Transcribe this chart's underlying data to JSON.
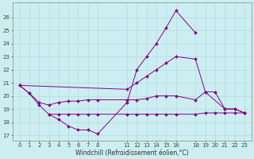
{
  "xlabel": "Windchill (Refroidissement éolien,°C)",
  "background_color": "#cceef0",
  "grid_color": "#aad8dc",
  "line_color": "#880088",
  "ylim_low": 16.6,
  "ylim_high": 27.1,
  "xlim_low": -0.7,
  "xlim_high": 23.7,
  "yticks": [
    17,
    18,
    19,
    20,
    21,
    22,
    23,
    24,
    25,
    26
  ],
  "xticks": [
    0,
    1,
    2,
    3,
    4,
    5,
    6,
    7,
    8,
    11,
    12,
    13,
    14,
    15,
    16,
    18,
    19,
    20,
    21,
    22,
    23
  ],
  "series": [
    {
      "x": [
        0,
        1,
        2,
        3,
        4,
        5,
        6,
        7,
        8,
        11,
        12,
        13,
        14,
        15,
        16,
        18
      ],
      "y": [
        20.8,
        20.2,
        19.3,
        18.6,
        18.2,
        17.7,
        17.4,
        17.4,
        17.1,
        19.5,
        22.0,
        23.0,
        24.0,
        25.2,
        26.5,
        24.8
      ]
    },
    {
      "x": [
        0,
        11,
        12,
        13,
        14,
        15,
        16,
        18,
        19,
        21,
        22,
        23
      ],
      "y": [
        20.8,
        20.5,
        21.0,
        21.5,
        22.0,
        22.5,
        23.0,
        22.8,
        20.3,
        19.0,
        19.0,
        18.7
      ]
    },
    {
      "x": [
        0,
        1,
        2,
        3,
        4,
        5,
        6,
        7,
        8,
        11,
        12,
        13,
        14,
        15,
        16,
        18,
        19,
        20,
        21,
        22,
        23
      ],
      "y": [
        20.8,
        20.2,
        19.5,
        19.3,
        19.5,
        19.6,
        19.6,
        19.7,
        19.7,
        19.7,
        19.7,
        19.8,
        20.0,
        20.0,
        20.0,
        19.7,
        20.3,
        20.3,
        19.0,
        19.0,
        18.7
      ]
    },
    {
      "x": [
        3,
        4,
        5,
        6,
        7,
        8,
        11,
        12,
        13,
        14,
        15,
        16,
        18,
        19,
        20,
        21,
        22,
        23
      ],
      "y": [
        18.6,
        18.6,
        18.6,
        18.6,
        18.6,
        18.6,
        18.6,
        18.6,
        18.6,
        18.6,
        18.6,
        18.6,
        18.6,
        18.7,
        18.7,
        18.7,
        18.7,
        18.7
      ]
    }
  ]
}
